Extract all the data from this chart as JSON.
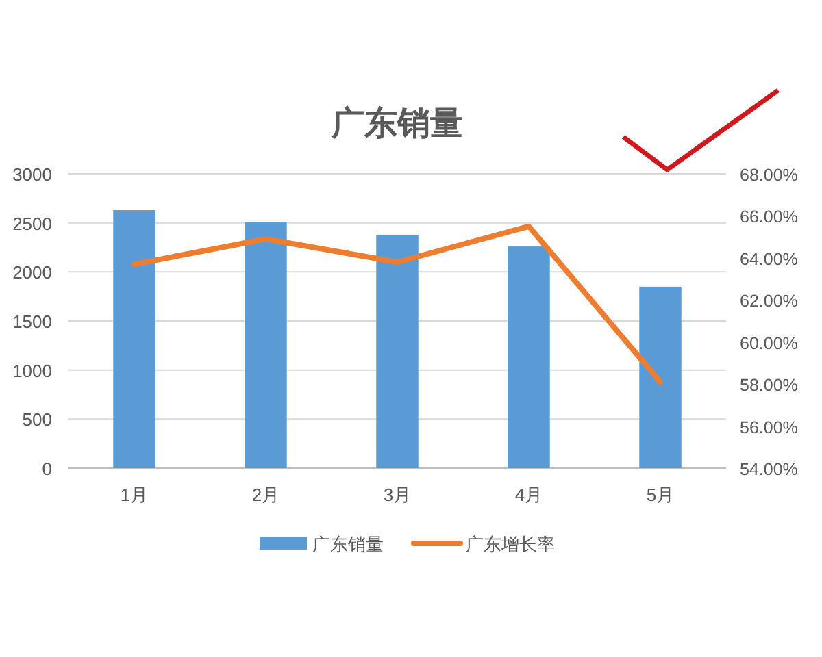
{
  "chart_data": {
    "type": "bar",
    "title": "广东销量",
    "categories": [
      "1月",
      "2月",
      "3月",
      "4月",
      "5月"
    ],
    "series": [
      {
        "name": "广东销量",
        "color": "#5b9bd5",
        "values": [
          2630,
          2510,
          2380,
          2260,
          1850
        ]
      },
      {
        "name": "广东增长率",
        "type": "line",
        "axis": "y2",
        "color": "#ed7d31",
        "values": [
          63.7,
          64.9,
          63.8,
          65.5,
          58.1
        ]
      }
    ],
    "ylim": [
      0,
      3000
    ],
    "yticks": [
      0,
      500,
      1000,
      1500,
      2000,
      2500,
      3000
    ],
    "y2lim": [
      54,
      68
    ],
    "y2ticks": [
      {
        "value": 54,
        "label": "54.00%"
      },
      {
        "value": 56,
        "label": "56.00%"
      },
      {
        "value": 58,
        "label": "58.00%"
      },
      {
        "value": 60,
        "label": "60.00%"
      },
      {
        "value": 62,
        "label": "62.00%"
      },
      {
        "value": 64,
        "label": "64.00%"
      },
      {
        "value": 66,
        "label": "66.00%"
      },
      {
        "value": 68,
        "label": "68.00%"
      }
    ],
    "grid": "y",
    "legend": "bottom"
  }
}
